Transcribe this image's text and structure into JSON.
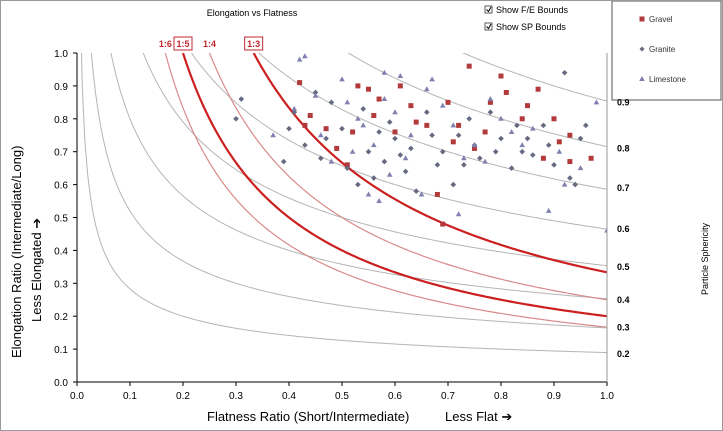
{
  "chart_data": {
    "type": "scatter",
    "title": "Elongation vs Flatness",
    "xlabel": "Flatness Ratio (Short/Intermediate)",
    "xlabel_hint": "Less Flat ➔",
    "ylabel": "Elongation Ratio (Intermediate/Long)",
    "ylabel_hint": "Less Elongated ➔",
    "right_axis_label": "Particle Sphericity",
    "xlim": [
      0,
      1
    ],
    "ylim": [
      0,
      1
    ],
    "x_ticks": [
      "0.0",
      "0.1",
      "0.2",
      "0.3",
      "0.4",
      "0.5",
      "0.6",
      "0.7",
      "0.8",
      "0.9",
      "1.0"
    ],
    "y_ticks": [
      "0.0",
      "0.1",
      "0.2",
      "0.3",
      "0.4",
      "0.5",
      "0.6",
      "0.7",
      "0.8",
      "0.9",
      "1.0"
    ],
    "grid": false,
    "legend_position": "top-right",
    "checkboxes": [
      {
        "label": "Show F/E Bounds",
        "checked": true
      },
      {
        "label": "Show SP Bounds",
        "checked": true
      }
    ],
    "sphericity_labels": [
      {
        "label": "0.9",
        "y": 0.85
      },
      {
        "label": "0.8",
        "y": 0.71
      },
      {
        "label": "0.7",
        "y": 0.59
      },
      {
        "label": "0.6",
        "y": 0.465
      },
      {
        "label": "0.5",
        "y": 0.35
      },
      {
        "label": "0.4",
        "y": 0.25
      },
      {
        "label": "0.3",
        "y": 0.165
      },
      {
        "label": "0.2",
        "y": 0.085
      }
    ],
    "sphericity_curves": [
      0.2,
      0.3,
      0.4,
      0.5,
      0.6,
      0.7,
      0.8,
      0.9
    ],
    "ratio_lines": [
      {
        "label": "1:6",
        "ratio": 6,
        "boxed": false,
        "bold": false
      },
      {
        "label": "1:5",
        "ratio": 5,
        "boxed": true,
        "bold": true
      },
      {
        "label": "1:4",
        "ratio": 4,
        "boxed": false,
        "bold": false
      },
      {
        "label": "1:3",
        "ratio": 3,
        "boxed": true,
        "bold": true
      }
    ],
    "series": [
      {
        "name": "Gravel",
        "marker": "square",
        "color": "#b23a3a",
        "points": [
          [
            0.42,
            0.91
          ],
          [
            0.43,
            0.78
          ],
          [
            0.44,
            0.81
          ],
          [
            0.47,
            0.77
          ],
          [
            0.49,
            0.71
          ],
          [
            0.51,
            0.66
          ],
          [
            0.52,
            0.76
          ],
          [
            0.53,
            0.9
          ],
          [
            0.55,
            0.89
          ],
          [
            0.56,
            0.81
          ],
          [
            0.57,
            0.86
          ],
          [
            0.6,
            0.76
          ],
          [
            0.61,
            0.9
          ],
          [
            0.63,
            0.84
          ],
          [
            0.64,
            0.79
          ],
          [
            0.66,
            0.78
          ],
          [
            0.68,
            0.57
          ],
          [
            0.69,
            0.48
          ],
          [
            0.7,
            0.85
          ],
          [
            0.71,
            0.73
          ],
          [
            0.72,
            0.78
          ],
          [
            0.74,
            0.96
          ],
          [
            0.75,
            0.71
          ],
          [
            0.77,
            0.76
          ],
          [
            0.78,
            0.85
          ],
          [
            0.8,
            0.93
          ],
          [
            0.81,
            0.88
          ],
          [
            0.84,
            0.8
          ],
          [
            0.85,
            0.84
          ],
          [
            0.87,
            0.89
          ],
          [
            0.88,
            0.68
          ],
          [
            0.9,
            0.8
          ],
          [
            0.91,
            0.73
          ],
          [
            0.93,
            0.75
          ],
          [
            0.93,
            0.67
          ],
          [
            0.97,
            0.68
          ]
        ]
      },
      {
        "name": "Granite",
        "marker": "diamond",
        "color": "#666a80",
        "points": [
          [
            0.3,
            0.8
          ],
          [
            0.31,
            0.86
          ],
          [
            0.39,
            0.67
          ],
          [
            0.4,
            0.77
          ],
          [
            0.41,
            0.82
          ],
          [
            0.43,
            0.72
          ],
          [
            0.45,
            0.88
          ],
          [
            0.46,
            0.68
          ],
          [
            0.47,
            0.74
          ],
          [
            0.48,
            0.85
          ],
          [
            0.5,
            0.77
          ],
          [
            0.51,
            0.65
          ],
          [
            0.53,
            0.6
          ],
          [
            0.54,
            0.83
          ],
          [
            0.55,
            0.7
          ],
          [
            0.56,
            0.62
          ],
          [
            0.57,
            0.76
          ],
          [
            0.58,
            0.67
          ],
          [
            0.59,
            0.79
          ],
          [
            0.6,
            0.74
          ],
          [
            0.61,
            0.69
          ],
          [
            0.62,
            0.64
          ],
          [
            0.63,
            0.71
          ],
          [
            0.64,
            0.58
          ],
          [
            0.66,
            0.82
          ],
          [
            0.67,
            0.75
          ],
          [
            0.68,
            0.66
          ],
          [
            0.69,
            0.7
          ],
          [
            0.71,
            0.6
          ],
          [
            0.72,
            0.75
          ],
          [
            0.73,
            0.66
          ],
          [
            0.74,
            0.8
          ],
          [
            0.75,
            0.72
          ],
          [
            0.76,
            0.68
          ],
          [
            0.78,
            0.82
          ],
          [
            0.79,
            0.7
          ],
          [
            0.8,
            0.74
          ],
          [
            0.82,
            0.65
          ],
          [
            0.83,
            0.78
          ],
          [
            0.84,
            0.7
          ],
          [
            0.85,
            0.74
          ],
          [
            0.86,
            0.69
          ],
          [
            0.88,
            0.78
          ],
          [
            0.89,
            0.72
          ],
          [
            0.9,
            0.66
          ],
          [
            0.92,
            0.94
          ],
          [
            0.93,
            0.62
          ],
          [
            0.94,
            0.6
          ],
          [
            0.95,
            0.74
          ],
          [
            0.96,
            0.78
          ]
        ]
      },
      {
        "name": "Limestone",
        "marker": "triangle",
        "color": "#8080b0",
        "points": [
          [
            0.37,
            0.75
          ],
          [
            0.41,
            0.83
          ],
          [
            0.42,
            0.98
          ],
          [
            0.43,
            0.99
          ],
          [
            0.45,
            0.87
          ],
          [
            0.46,
            0.75
          ],
          [
            0.48,
            0.67
          ],
          [
            0.5,
            0.92
          ],
          [
            0.51,
            0.85
          ],
          [
            0.52,
            0.7
          ],
          [
            0.53,
            0.8
          ],
          [
            0.54,
            0.78
          ],
          [
            0.55,
            0.57
          ],
          [
            0.56,
            0.72
          ],
          [
            0.57,
            0.55
          ],
          [
            0.58,
            0.86
          ],
          [
            0.59,
            0.63
          ],
          [
            0.6,
            0.82
          ],
          [
            0.62,
            0.68
          ],
          [
            0.63,
            0.75
          ],
          [
            0.65,
            0.57
          ],
          [
            0.67,
            0.92
          ],
          [
            0.69,
            0.84
          ],
          [
            0.71,
            0.78
          ],
          [
            0.72,
            0.51
          ],
          [
            0.73,
            0.68
          ],
          [
            0.75,
            0.72
          ],
          [
            0.77,
            0.67
          ],
          [
            0.78,
            0.86
          ],
          [
            0.8,
            0.8
          ],
          [
            0.82,
            0.76
          ],
          [
            0.84,
            0.72
          ],
          [
            0.86,
            0.77
          ],
          [
            0.89,
            0.52
          ],
          [
            0.91,
            0.7
          ],
          [
            0.92,
            0.6
          ],
          [
            0.95,
            0.65
          ],
          [
            0.98,
            0.85
          ],
          [
            1.0,
            0.46
          ],
          [
            0.58,
            0.94
          ],
          [
            0.61,
            0.93
          ],
          [
            0.66,
            0.89
          ]
        ]
      }
    ]
  }
}
